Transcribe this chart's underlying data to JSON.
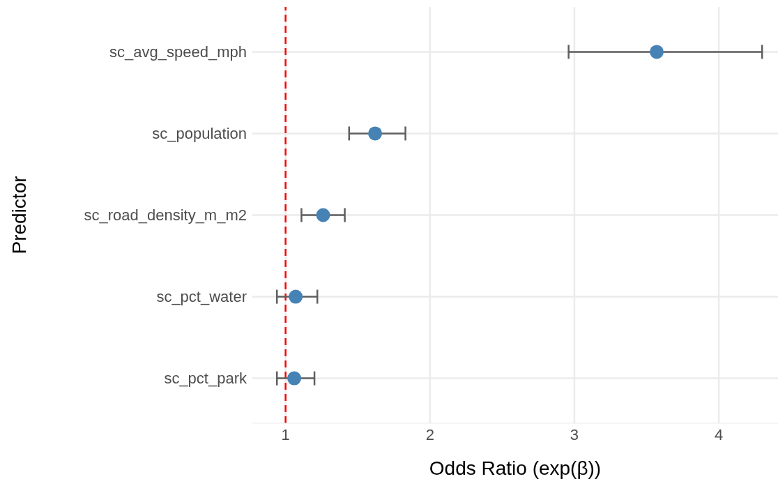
{
  "chart_data": {
    "type": "scatter",
    "orientation": "horizontal",
    "xlabel": "Odds Ratio (exp(β))",
    "ylabel": "Predictor",
    "categories": [
      "sc_avg_speed_mph",
      "sc_population",
      "sc_road_density_m_m2",
      "sc_pct_water",
      "sc_pct_park"
    ],
    "series": [
      {
        "color": "#4682b4",
        "values": [
          3.57,
          1.62,
          1.26,
          1.07,
          1.06
        ],
        "errors": [
          [
            2.96,
            4.3
          ],
          [
            1.44,
            1.83
          ],
          [
            1.11,
            1.41
          ],
          [
            0.94,
            1.22
          ],
          [
            0.94,
            1.2
          ]
        ]
      }
    ],
    "xlim": [
      0.77,
      4.41
    ],
    "xticks": [
      1,
      2,
      3,
      4
    ],
    "ref_lines": [
      {
        "axis": "x",
        "value": 1,
        "color": "#ff0000",
        "line_style": "dashed"
      }
    ],
    "grid": true,
    "marker": "circle"
  }
}
